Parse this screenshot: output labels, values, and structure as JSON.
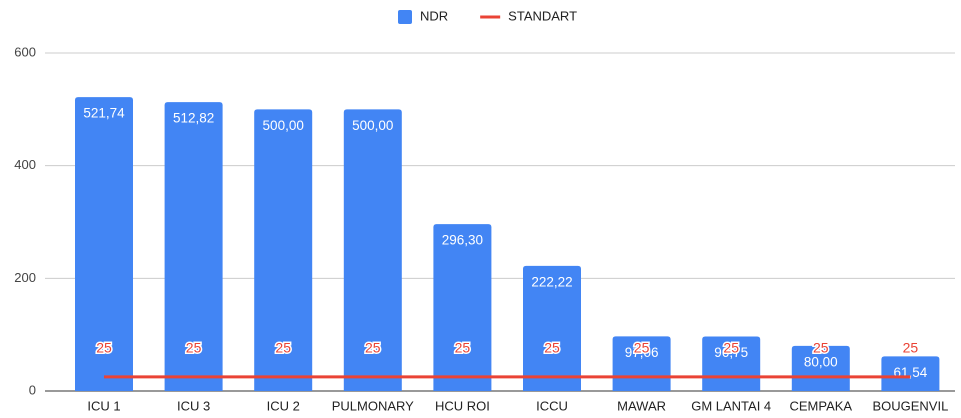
{
  "chart_data": {
    "type": "bar",
    "categories": [
      "ICU 1",
      "ICU 3",
      "ICU 2",
      "PULMONARY",
      "HCU ROI",
      "ICCU",
      "MAWAR",
      "GM LANTAI 4",
      "CEMPAKA",
      "BOUGENVIL"
    ],
    "series": [
      {
        "name": "NDR",
        "color": "#4285f4",
        "type": "bar",
        "values": [
          521.74,
          512.82,
          500,
          500,
          296.3,
          222.22,
          97.06,
          96.75,
          80,
          61.54
        ],
        "value_labels": [
          "521,74",
          "512,82",
          "500,00",
          "500,00",
          "296,30",
          "222,22",
          "97,06",
          "96,75",
          "80,00",
          "61,54"
        ]
      },
      {
        "name": "STANDART",
        "color": "#ea4335",
        "type": "line",
        "values": [
          25,
          25,
          25,
          25,
          25,
          25,
          25,
          25,
          25,
          25
        ]
      }
    ],
    "ylim": [
      0,
      600
    ],
    "yticks": [
      0,
      200,
      400,
      600
    ],
    "grid": true,
    "legend": "top"
  }
}
